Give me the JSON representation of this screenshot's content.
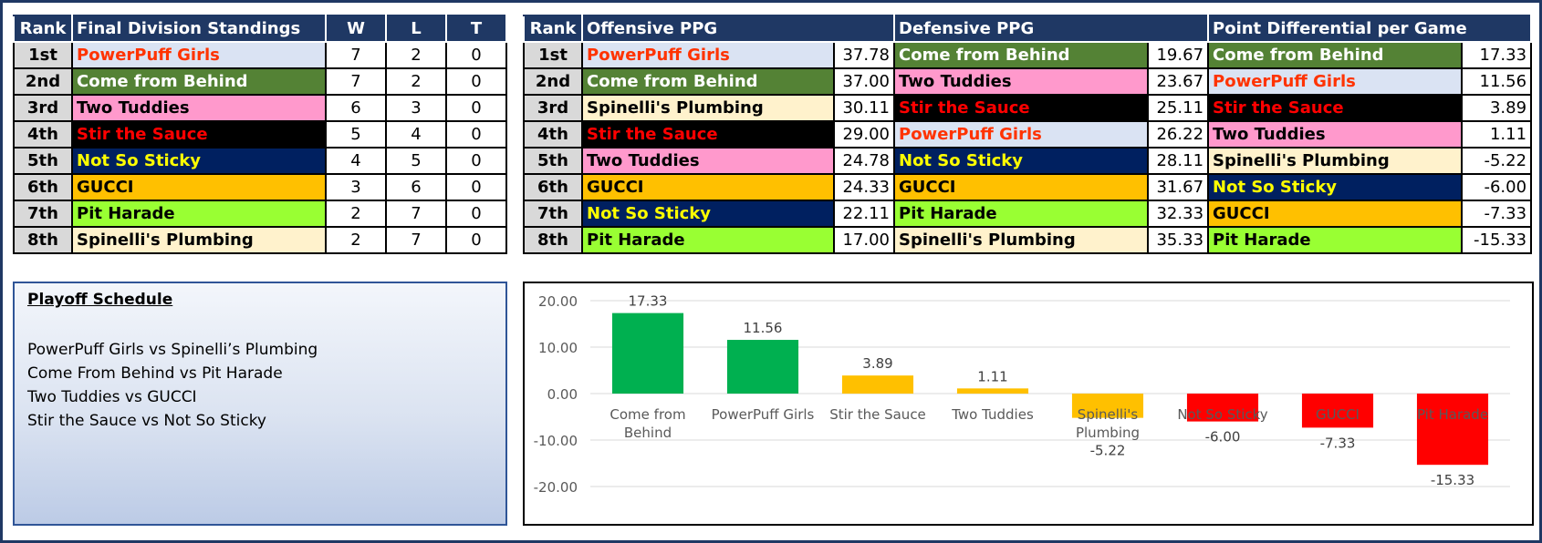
{
  "colors": {
    "header_bg": "#1f3864",
    "rank_bg": "#d9d9d9",
    "positive_bar": "#00b050",
    "mid_bar": "#ffc000",
    "negative_bar": "#ff0000"
  },
  "team_styles": {
    "PowerPuff Girls": {
      "bg": "#dae3f3",
      "fg": "#ff3300"
    },
    "Come from Behind": {
      "bg": "#548235",
      "fg": "#ffffff"
    },
    "Two Tuddies": {
      "bg": "#ff99cc",
      "fg": "#000000"
    },
    "Stir the Sauce": {
      "bg": "#000000",
      "fg": "#ff0000"
    },
    "Not So Sticky": {
      "bg": "#002060",
      "fg": "#ffff00"
    },
    "GUCCI": {
      "bg": "#ffc000",
      "fg": "#000000"
    },
    "Pit Harade": {
      "bg": "#99ff33",
      "fg": "#000000"
    },
    "Spinelli's Plumbing": {
      "bg": "#fff2cc",
      "fg": "#000000"
    }
  },
  "standings": {
    "headers": {
      "rank": "Rank",
      "title": "Final Division Standings",
      "w": "W",
      "l": "L",
      "t": "T"
    },
    "rows": [
      {
        "rank": "1st",
        "team": "PowerPuff Girls",
        "w": "7",
        "l": "2",
        "t": "0"
      },
      {
        "rank": "2nd",
        "team": "Come from Behind",
        "w": "7",
        "l": "2",
        "t": "0"
      },
      {
        "rank": "3rd",
        "team": "Two Tuddies",
        "w": "6",
        "l": "3",
        "t": "0"
      },
      {
        "rank": "4th",
        "team": "Stir the Sauce",
        "w": "5",
        "l": "4",
        "t": "0"
      },
      {
        "rank": "5th",
        "team": "Not So Sticky",
        "w": "4",
        "l": "5",
        "t": "0"
      },
      {
        "rank": "6th",
        "team": "GUCCI",
        "w": "3",
        "l": "6",
        "t": "0"
      },
      {
        "rank": "7th",
        "team": "Pit Harade",
        "w": "2",
        "l": "7",
        "t": "0"
      },
      {
        "rank": "8th",
        "team": "Spinelli's Plumbing",
        "w": "2",
        "l": "7",
        "t": "0"
      }
    ]
  },
  "stats": {
    "headers": {
      "rank": "Rank",
      "off": "Offensive PPG",
      "def": "Defensive PPG",
      "diff": "Point Differential per Game"
    },
    "rows": [
      {
        "rank": "1st",
        "off_team": "PowerPuff Girls",
        "off_val": "37.78",
        "def_team": "Come from Behind",
        "def_val": "19.67",
        "diff_team": "Come from Behind",
        "diff_val": "17.33"
      },
      {
        "rank": "2nd",
        "off_team": "Come from Behind",
        "off_val": "37.00",
        "def_team": "Two Tuddies",
        "def_val": "23.67",
        "diff_team": "PowerPuff Girls",
        "diff_val": "11.56"
      },
      {
        "rank": "3rd",
        "off_team": "Spinelli's Plumbing",
        "off_val": "30.11",
        "def_team": "Stir the Sauce",
        "def_val": "25.11",
        "diff_team": "Stir the Sauce",
        "diff_val": "3.89"
      },
      {
        "rank": "4th",
        "off_team": "Stir the Sauce",
        "off_val": "29.00",
        "def_team": "PowerPuff Girls",
        "def_val": "26.22",
        "diff_team": "Two Tuddies",
        "diff_val": "1.11"
      },
      {
        "rank": "5th",
        "off_team": "Two Tuddies",
        "off_val": "24.78",
        "def_team": "Not So Sticky",
        "def_val": "28.11",
        "diff_team": "Spinelli's Plumbing",
        "diff_val": "-5.22"
      },
      {
        "rank": "6th",
        "off_team": "GUCCI",
        "off_val": "24.33",
        "def_team": "GUCCI",
        "def_val": "31.67",
        "diff_team": "Not So Sticky",
        "diff_val": "-6.00"
      },
      {
        "rank": "7th",
        "off_team": "Not So Sticky",
        "off_val": "22.11",
        "def_team": "Pit Harade",
        "def_val": "32.33",
        "diff_team": "GUCCI",
        "diff_val": "-7.33"
      },
      {
        "rank": "8th",
        "off_team": "Pit Harade",
        "off_val": "17.00",
        "def_team": "Spinelli's Plumbing",
        "def_val": "35.33",
        "diff_team": "Pit Harade",
        "diff_val": "-15.33"
      }
    ]
  },
  "playoff": {
    "title": "Playoff Schedule",
    "games": [
      "PowerPuff Girls vs Spinelli’s Plumbing",
      "Come From Behind vs Pit Harade",
      "Two Tuddies vs GUCCI",
      "Stir the Sauce vs Not So Sticky"
    ]
  },
  "chart_data": {
    "type": "bar",
    "categories": [
      "Come from Behind",
      "PowerPuff Girls",
      "Stir the Sauce",
      "Two Tuddies",
      "Spinelli's Plumbing",
      "Not So Sticky",
      "GUCCI",
      "Pit Harade"
    ],
    "values": [
      17.33,
      11.56,
      3.89,
      1.11,
      -5.22,
      -6.0,
      -7.33,
      -15.33
    ],
    "data_labels": [
      "17.33",
      "11.56",
      "3.89",
      "1.11",
      "-5.22",
      "-6.00",
      "-7.33",
      "-15.33"
    ],
    "bar_colors": [
      "#00b050",
      "#00b050",
      "#ffc000",
      "#ffc000",
      "#ffc000",
      "#ff0000",
      "#ff0000",
      "#ff0000"
    ],
    "yticks": [
      "20.00",
      "10.00",
      "0.00",
      "-10.00",
      "-20.00"
    ],
    "ylim": [
      -20,
      20
    ],
    "grid": true,
    "legend": "none"
  }
}
